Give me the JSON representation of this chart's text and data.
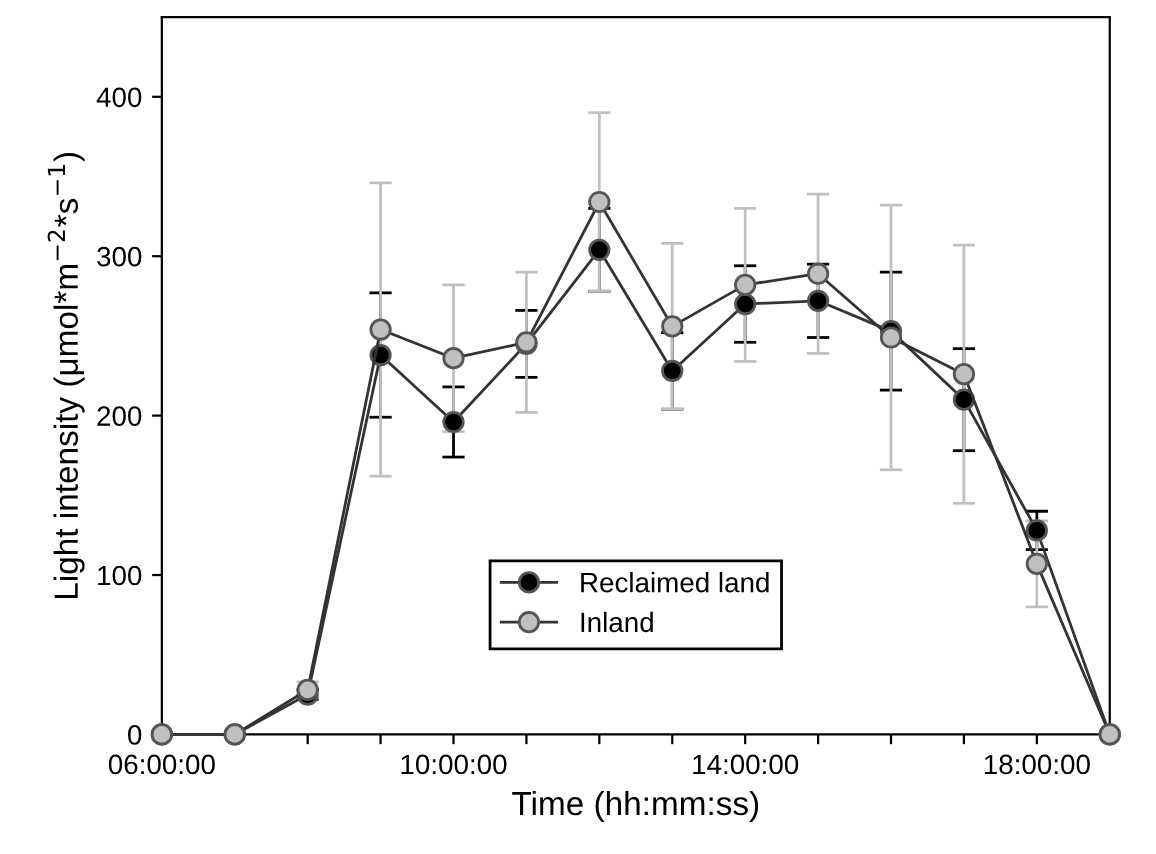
{
  "chart_data": {
    "type": "line",
    "xlabel": "Time (hh:mm:ss)",
    "ylabel": "Light intensity (μmol*m$^{−2}$*s$^{−1}$)",
    "x": [
      6,
      7,
      8,
      9,
      10,
      11,
      12,
      13,
      14,
      15,
      16,
      17,
      18,
      19
    ],
    "series": [
      {
        "name": "Reclaimed land",
        "color": "#000000",
        "values": [
          0,
          0,
          25,
          238,
          196,
          245,
          304,
          228,
          270,
          272,
          253,
          210,
          128,
          0
        ],
        "errors": [
          null,
          null,
          3,
          39,
          22,
          21,
          26,
          24,
          24,
          23,
          37,
          32,
          12,
          null
        ]
      },
      {
        "name": "Inland",
        "color": "#c0c0c0",
        "values": [
          0,
          0,
          28,
          254,
          236,
          246,
          334,
          256,
          282,
          289,
          249,
          226,
          107,
          0
        ],
        "errors": [
          null,
          null,
          5,
          92,
          46,
          44,
          56,
          52,
          48,
          50,
          83,
          81,
          27,
          null
        ]
      }
    ],
    "xlim": [
      6,
      19
    ],
    "ylim": [
      0,
      450
    ],
    "xticks": [
      {
        "value": 6,
        "label": "06:00:00"
      },
      {
        "value": 7,
        "label": null
      },
      {
        "value": 8,
        "label": null
      },
      {
        "value": 9,
        "label": null
      },
      {
        "value": 10,
        "label": "10:00:00"
      },
      {
        "value": 11,
        "label": null
      },
      {
        "value": 12,
        "label": null
      },
      {
        "value": 13,
        "label": null
      },
      {
        "value": 14,
        "label": "14:00:00"
      },
      {
        "value": 15,
        "label": null
      },
      {
        "value": 16,
        "label": null
      },
      {
        "value": 17,
        "label": null
      },
      {
        "value": 18,
        "label": "18:00:00"
      },
      {
        "value": 19,
        "label": null
      }
    ],
    "yticks": [
      0,
      100,
      200,
      300,
      400
    ],
    "marker": "circle",
    "line_style": "solid",
    "grid": false,
    "legend": "bottom"
  }
}
